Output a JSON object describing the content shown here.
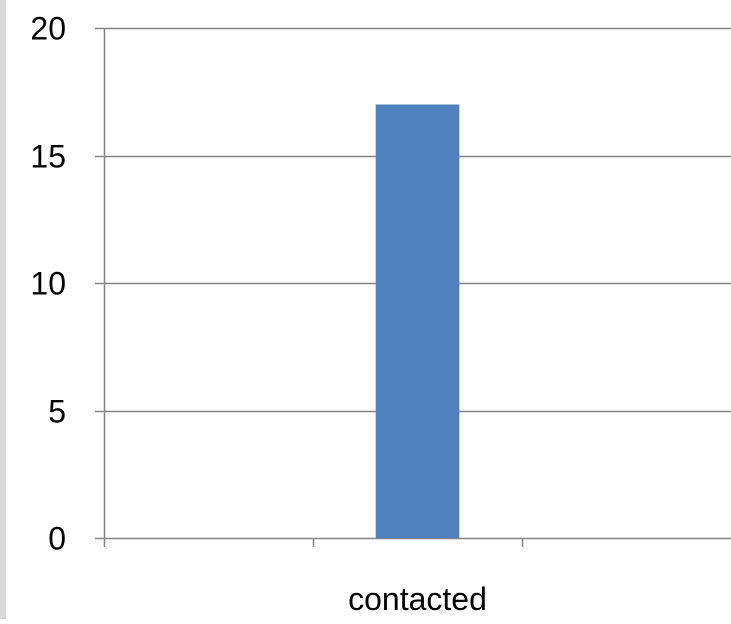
{
  "chart_data": {
    "type": "bar",
    "categories": [
      "contacted"
    ],
    "values": [
      17
    ],
    "category_slots": 3,
    "category_index": 1,
    "xlabel": "",
    "ylabel": "",
    "ylim": [
      0,
      20
    ],
    "yticks": [
      0,
      5,
      10,
      15,
      20
    ],
    "grid": true,
    "legend": "none",
    "bar_color": "#4f81bd",
    "grid_color": "#868686"
  }
}
